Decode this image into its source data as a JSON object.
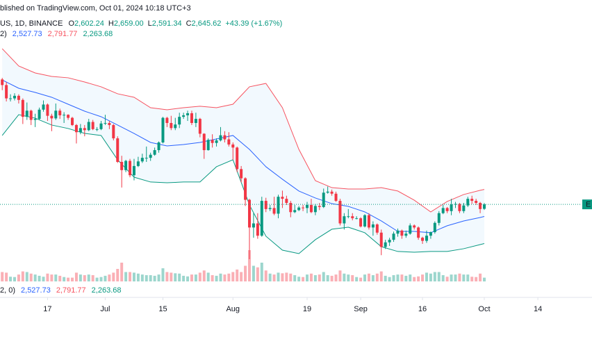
{
  "chart_data": {
    "type": "candlestick",
    "published": "blished on TradingView.com, Oct 01, 2024 10:18 UTC+3",
    "symbol": "US, 1D, BINANCE",
    "ohlc_keys": [
      "O",
      "H",
      "L",
      "C"
    ],
    "ohlc_values": [
      "2,602.24",
      "2,659.00",
      "2,591.34",
      "2,645.62"
    ],
    "change": "+43.39 (+1.67%)",
    "bb_label": "2)",
    "bb_label_volume": "2, 0)",
    "bb_values": [
      "2,527.73",
      "2,791.77",
      "2,263.68"
    ],
    "price_tag": "E",
    "up_color": "#089981",
    "down_color": "#f23645",
    "xlim": [
      -0.54,
      143.14
    ],
    "ylim": [
      1860,
      4640
    ],
    "vlim": [
      0,
      100
    ],
    "xticks": [
      {
        "value": 11,
        "label": "17"
      },
      {
        "value": 25,
        "label": "Jul"
      },
      {
        "value": 39,
        "label": "15"
      },
      {
        "value": 56,
        "label": "Aug"
      },
      {
        "value": 74,
        "label": "19"
      },
      {
        "value": 87,
        "label": "Sep"
      },
      {
        "value": 102,
        "label": "16"
      },
      {
        "value": 117,
        "label": "Oct"
      },
      {
        "value": 130,
        "label": "14"
      }
    ],
    "x": [
      0,
      1,
      2,
      3,
      4,
      5,
      6,
      7,
      8,
      9,
      10,
      11,
      12,
      13,
      14,
      15,
      16,
      17,
      18,
      19,
      20,
      21,
      22,
      23,
      24,
      25,
      26,
      27,
      28,
      29,
      30,
      31,
      32,
      33,
      34,
      35,
      36,
      37,
      38,
      39,
      40,
      41,
      42,
      43,
      44,
      45,
      46,
      47,
      48,
      49,
      50,
      51,
      52,
      53,
      54,
      55,
      56,
      57,
      58,
      59,
      60,
      61,
      62,
      63,
      64,
      65,
      66,
      67,
      68,
      69,
      70,
      71,
      72,
      73,
      74,
      75,
      76,
      77,
      78,
      79,
      80,
      81,
      82,
      83,
      84,
      85,
      86,
      87,
      88,
      89,
      90,
      91,
      92,
      93,
      94,
      95,
      96,
      97,
      98,
      99,
      100,
      101,
      102,
      103,
      104,
      105,
      106,
      107,
      108,
      109,
      110,
      111,
      112,
      113,
      114,
      115,
      116,
      117
    ],
    "open": [
      3865,
      3810,
      3680,
      3680,
      3705,
      3665,
      3500,
      3560,
      3470,
      3480,
      3570,
      3620,
      3510,
      3485,
      3560,
      3515,
      3520,
      3490,
      3420,
      3350,
      3390,
      3370,
      3450,
      3380,
      3380,
      3435,
      3440,
      3420,
      3290,
      3060,
      2980,
      3070,
      2930,
      3020,
      3065,
      3100,
      3100,
      3130,
      3175,
      3250,
      3490,
      3440,
      3390,
      3425,
      3500,
      3515,
      3535,
      3440,
      3480,
      3335,
      3175,
      3275,
      3245,
      3270,
      3320,
      3280,
      3230,
      3200,
      2990,
      2900,
      2690,
      2420,
      2460,
      2340,
      2680,
      2600,
      2610,
      2555,
      2720,
      2700,
      2660,
      2570,
      2590,
      2615,
      2610,
      2640,
      2570,
      2630,
      2620,
      2760,
      2770,
      2750,
      2680,
      2460,
      2530,
      2530,
      2510,
      2510,
      2430,
      2540,
      2420,
      2450,
      2370,
      2230,
      2275,
      2300,
      2360,
      2390,
      2340,
      2360,
      2440,
      2420,
      2320,
      2290,
      2340,
      2375,
      2465,
      2560,
      2610,
      2580,
      2645,
      2650,
      2580,
      2635,
      2700,
      2680,
      2660,
      2602.24
    ],
    "high": [
      3880,
      3840,
      3720,
      3730,
      3720,
      3680,
      3640,
      3570,
      3530,
      3590,
      3660,
      3630,
      3530,
      3630,
      3580,
      3545,
      3525,
      3500,
      3430,
      3430,
      3420,
      3480,
      3470,
      3400,
      3460,
      3520,
      3460,
      3430,
      3310,
      3120,
      3080,
      3090,
      3090,
      3110,
      3140,
      3210,
      3150,
      3200,
      3260,
      3500,
      3500,
      3510,
      3490,
      3540,
      3540,
      3560,
      3560,
      3540,
      3490,
      3340,
      3290,
      3330,
      3290,
      3400,
      3360,
      3350,
      3250,
      3210,
      3020,
      2910,
      2700,
      2560,
      2560,
      2720,
      2710,
      2640,
      2720,
      2740,
      2780,
      2730,
      2680,
      2640,
      2630,
      2640,
      2670,
      2700,
      2650,
      2660,
      2800,
      2820,
      2790,
      2770,
      2700,
      2560,
      2600,
      2560,
      2530,
      2520,
      2550,
      2560,
      2480,
      2460,
      2400,
      2300,
      2320,
      2380,
      2410,
      2400,
      2390,
      2460,
      2450,
      2430,
      2330,
      2390,
      2380,
      2480,
      2580,
      2640,
      2620,
      2700,
      2670,
      2660,
      2660,
      2720,
      2730,
      2700,
      2670,
      2659
    ],
    "low": [
      3760,
      3650,
      3650,
      3660,
      3630,
      3430,
      3470,
      3420,
      3400,
      3470,
      3550,
      3460,
      3360,
      3470,
      3480,
      3440,
      3470,
      3410,
      3240,
      3330,
      3310,
      3360,
      3370,
      3360,
      3370,
      3420,
      3380,
      3270,
      3050,
      2810,
      2960,
      2910,
      2880,
      3010,
      3050,
      3060,
      3070,
      3120,
      3150,
      3240,
      3400,
      3370,
      3370,
      3390,
      3480,
      3460,
      3420,
      3400,
      3300,
      3090,
      3170,
      3200,
      3210,
      3260,
      3250,
      3210,
      3080,
      2960,
      2860,
      2630,
      2111,
      2320,
      2310,
      2330,
      2570,
      2580,
      2540,
      2510,
      2610,
      2640,
      2520,
      2560,
      2580,
      2580,
      2560,
      2560,
      2540,
      2590,
      2610,
      2750,
      2730,
      2670,
      2440,
      2400,
      2510,
      2490,
      2500,
      2420,
      2420,
      2400,
      2340,
      2350,
      2150,
      2210,
      2240,
      2280,
      2330,
      2310,
      2320,
      2350,
      2400,
      2300,
      2260,
      2270,
      2310,
      2360,
      2440,
      2550,
      2560,
      2540,
      2610,
      2560,
      2560,
      2620,
      2650,
      2640,
      2560,
      2591.34
    ],
    "close": [
      3810,
      3680,
      3680,
      3705,
      3665,
      3500,
      3560,
      3470,
      3480,
      3570,
      3620,
      3510,
      3485,
      3560,
      3515,
      3520,
      3490,
      3420,
      3350,
      3390,
      3370,
      3450,
      3380,
      3380,
      3435,
      3440,
      3420,
      3290,
      3060,
      2980,
      3070,
      2930,
      3020,
      3065,
      3100,
      3100,
      3130,
      3175,
      3250,
      3490,
      3440,
      3390,
      3425,
      3500,
      3515,
      3535,
      3440,
      3480,
      3335,
      3175,
      3275,
      3245,
      3270,
      3320,
      3280,
      3230,
      3200,
      2990,
      2900,
      2690,
      2420,
      2460,
      2340,
      2680,
      2600,
      2610,
      2555,
      2720,
      2700,
      2660,
      2570,
      2590,
      2615,
      2610,
      2640,
      2570,
      2630,
      2620,
      2760,
      2770,
      2750,
      2680,
      2460,
      2530,
      2530,
      2510,
      2510,
      2430,
      2540,
      2420,
      2450,
      2370,
      2230,
      2275,
      2300,
      2360,
      2390,
      2340,
      2360,
      2440,
      2420,
      2320,
      2290,
      2340,
      2375,
      2465,
      2560,
      2610,
      2580,
      2645,
      2650,
      2580,
      2635,
      2700,
      2680,
      2660,
      2600,
      2645.62
    ],
    "volume": [
      30,
      28,
      15,
      14,
      22,
      32,
      30,
      25,
      22,
      18,
      15,
      25,
      22,
      22,
      18,
      14,
      12,
      12,
      28,
      22,
      20,
      22,
      20,
      12,
      14,
      18,
      22,
      28,
      40,
      60,
      30,
      30,
      28,
      25,
      22,
      20,
      20,
      18,
      22,
      42,
      30,
      28,
      26,
      25,
      18,
      16,
      22,
      22,
      28,
      35,
      28,
      20,
      18,
      25,
      22,
      25,
      30,
      38,
      30,
      50,
      100,
      50,
      45,
      60,
      35,
      25,
      22,
      28,
      26,
      28,
      25,
      20,
      15,
      14,
      22,
      25,
      20,
      22,
      30,
      20,
      18,
      22,
      35,
      25,
      22,
      20,
      14,
      12,
      22,
      25,
      20,
      25,
      32,
      18,
      14,
      20,
      22,
      22,
      18,
      22,
      14,
      16,
      22,
      28,
      25,
      30,
      30,
      20,
      15,
      22,
      22,
      25,
      22,
      22,
      15,
      14,
      25,
      12
    ],
    "band_fill": "#2196f3",
    "series": [
      {
        "color": "#f7525f",
        "x": [
          0,
          4,
          8,
          12,
          16,
          20,
          24,
          28,
          32,
          36,
          40,
          44,
          48,
          52,
          56,
          60,
          64,
          68,
          72,
          76,
          80,
          84,
          88,
          92,
          96,
          100,
          104,
          108,
          112,
          116,
          117
        ],
        "values": [
          4165,
          3996,
          3928,
          3894,
          3881,
          3840,
          3793,
          3725,
          3691,
          3589,
          3569,
          3589,
          3603,
          3589,
          3623,
          3793,
          3826,
          3589,
          3182,
          2877,
          2809,
          2796,
          2796,
          2809,
          2776,
          2687,
          2572,
          2674,
          2742,
          2783,
          2791.77
        ]
      },
      {
        "color": "#2962ff",
        "x": [
          0,
          4,
          8,
          12,
          16,
          20,
          24,
          28,
          32,
          36,
          40,
          44,
          48,
          52,
          56,
          60,
          64,
          68,
          72,
          76,
          80,
          84,
          88,
          92,
          96,
          100,
          104,
          108,
          112,
          116,
          117
        ],
        "values": [
          3860,
          3779,
          3738,
          3691,
          3623,
          3555,
          3501,
          3420,
          3338,
          3250,
          3216,
          3230,
          3250,
          3284,
          3318,
          3182,
          3013,
          2891,
          2776,
          2708,
          2653,
          2626,
          2572,
          2484,
          2382,
          2382,
          2369,
          2437,
          2484,
          2518,
          2527.73
        ]
      },
      {
        "color": "#089981",
        "x": [
          0,
          4,
          8,
          12,
          16,
          20,
          24,
          28,
          32,
          36,
          40,
          44,
          48,
          52,
          56,
          60,
          64,
          68,
          72,
          76,
          80,
          84,
          88,
          92,
          96,
          100,
          104,
          108,
          112,
          116,
          117
        ],
        "values": [
          3318,
          3521,
          3487,
          3420,
          3386,
          3338,
          3318,
          3081,
          2911,
          2864,
          2857,
          2864,
          2864,
          3013,
          3081,
          2640,
          2335,
          2199,
          2165,
          2301,
          2403,
          2423,
          2369,
          2233,
          2186,
          2179,
          2186,
          2186,
          2213,
          2253,
          2263.68
        ]
      }
    ]
  }
}
